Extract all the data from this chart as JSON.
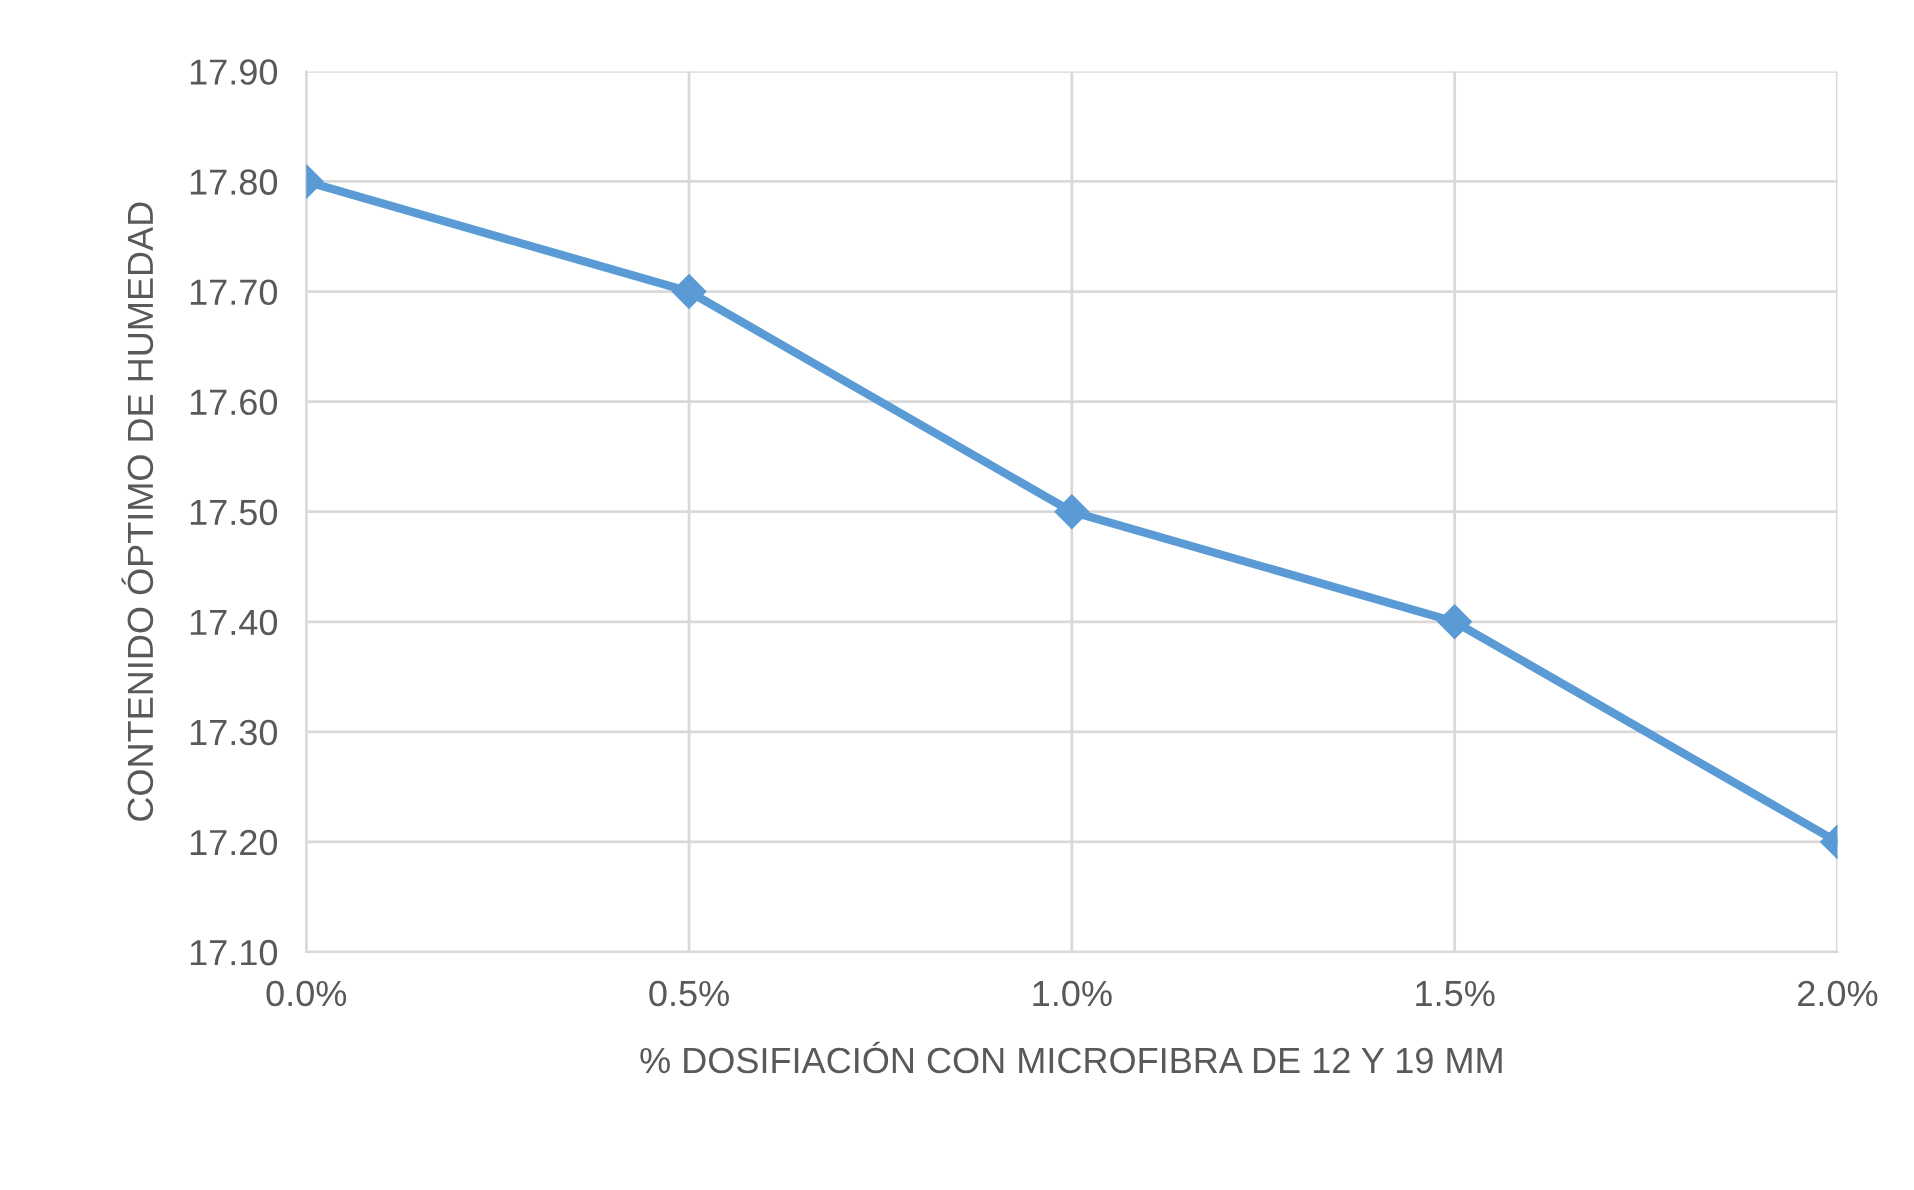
{
  "chart_data": {
    "type": "line",
    "xlabel": "% DOSIFIACIÓN CON MICROFIBRA DE 12 Y 19 MM",
    "ylabel": "CONTENIDO ÓPTIMO DE HUMEDAD",
    "categories": [
      "0.0%",
      "0.5%",
      "1.0%",
      "1.5%",
      "2.0%"
    ],
    "series": [
      {
        "color": "#5b9bd5",
        "values": [
          17.8,
          17.7,
          17.5,
          17.4,
          17.2
        ]
      }
    ],
    "ylim": [
      17.1,
      17.9
    ],
    "yticks": [
      {
        "value": 17.1,
        "label": "17.10"
      },
      {
        "value": 17.2,
        "label": "17.20"
      },
      {
        "value": 17.3,
        "label": "17.30"
      },
      {
        "value": 17.4,
        "label": "17.40"
      },
      {
        "value": 17.5,
        "label": "17.50"
      },
      {
        "value": 17.6,
        "label": "17.60"
      },
      {
        "value": 17.7,
        "label": "17.70"
      },
      {
        "value": 17.8,
        "label": "17.80"
      },
      {
        "value": 17.9,
        "label": "17.90"
      }
    ],
    "grid": true,
    "marker": "diamond",
    "line_style": "solid",
    "legend": false
  }
}
